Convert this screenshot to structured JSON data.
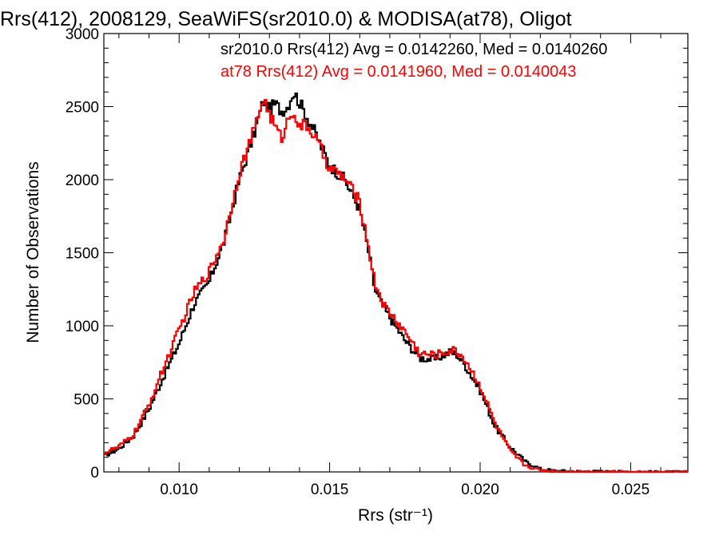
{
  "chart_data": {
    "type": "line",
    "title": "Rrs(412), 2008129, SeaWiFS(sr2010.0) & MODISA(at78), Oligot",
    "xlabel": "Rrs (str⁻¹)",
    "ylabel": "Number of Observations",
    "xlim": [
      0.0075,
      0.0269
    ],
    "ylim": [
      0,
      3000
    ],
    "x_ticks": [
      0.01,
      0.015,
      0.02,
      0.025
    ],
    "x_tick_labels": [
      "0.010",
      "0.015",
      "0.020",
      "0.025"
    ],
    "y_ticks": [
      0,
      500,
      1000,
      1500,
      2000,
      2500,
      3000
    ],
    "y_tick_labels": [
      "0",
      "500",
      "1000",
      "1500",
      "2000",
      "2500",
      "3000"
    ],
    "grid": false,
    "legend_position": "top-right",
    "series": [
      {
        "name": "sr2010.0 Rrs(412) Avg = 0.0142260, Med = 0.0140260",
        "color": "#000000",
        "x": [
          0.0075,
          0.008,
          0.0085,
          0.009,
          0.0095,
          0.01,
          0.0105,
          0.011,
          0.0115,
          0.012,
          0.0125,
          0.0128,
          0.013,
          0.0132,
          0.0134,
          0.0136,
          0.0138,
          0.014,
          0.0142,
          0.0145,
          0.015,
          0.0155,
          0.016,
          0.0163,
          0.0165,
          0.0168,
          0.017,
          0.0175,
          0.018,
          0.0185,
          0.019,
          0.0192,
          0.0195,
          0.02,
          0.0205,
          0.021,
          0.0215,
          0.022,
          0.0225,
          0.023,
          0.024,
          0.025,
          0.026,
          0.0269
        ],
        "y": [
          110,
          160,
          250,
          430,
          660,
          880,
          1150,
          1300,
          1580,
          2000,
          2320,
          2540,
          2480,
          2520,
          2470,
          2500,
          2600,
          2530,
          2450,
          2330,
          2100,
          2000,
          1800,
          1500,
          1250,
          1120,
          1060,
          900,
          780,
          770,
          820,
          810,
          730,
          560,
          310,
          170,
          70,
          20,
          8,
          4,
          2,
          1,
          0,
          0
        ]
      },
      {
        "name": "at78 Rrs(412) Avg = 0.0141960, Med = 0.0140043",
        "color": "#ff0000",
        "x": [
          0.0075,
          0.008,
          0.0085,
          0.009,
          0.0095,
          0.01,
          0.0105,
          0.011,
          0.0115,
          0.012,
          0.0125,
          0.0128,
          0.013,
          0.0132,
          0.0134,
          0.0136,
          0.0138,
          0.014,
          0.0142,
          0.0145,
          0.015,
          0.0155,
          0.016,
          0.0163,
          0.0165,
          0.0168,
          0.017,
          0.0175,
          0.018,
          0.0185,
          0.019,
          0.0192,
          0.0195,
          0.02,
          0.0205,
          0.021,
          0.0215,
          0.022,
          0.0225,
          0.023,
          0.024,
          0.025,
          0.026,
          0.0269
        ],
        "y": [
          130,
          170,
          260,
          460,
          720,
          970,
          1230,
          1370,
          1600,
          2050,
          2340,
          2560,
          2450,
          2360,
          2280,
          2400,
          2480,
          2350,
          2380,
          2300,
          2080,
          2010,
          1850,
          1530,
          1300,
          1140,
          1090,
          960,
          810,
          800,
          830,
          830,
          770,
          590,
          330,
          140,
          45,
          12,
          5,
          3,
          1,
          0,
          0,
          0
        ]
      }
    ]
  }
}
